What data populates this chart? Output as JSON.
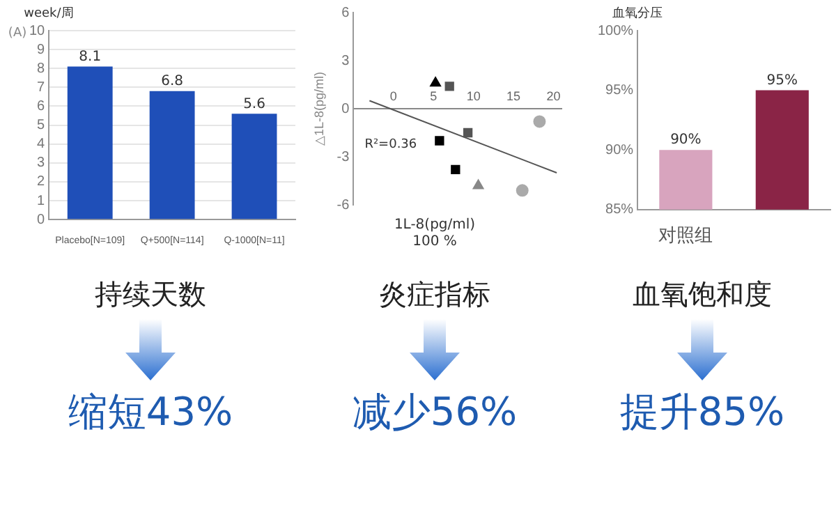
{
  "chart_data": [
    {
      "type": "bar",
      "ylabel": "week/周",
      "categories": [
        "Placebo[N=109]",
        "Q+500[N=114]",
        "Q-1000[N=11]"
      ],
      "values": [
        8.1,
        6.8,
        5.6
      ],
      "color": "#1f4fb8",
      "ylim": [
        0,
        10
      ],
      "yticks": [
        0,
        1,
        2,
        3,
        4,
        5,
        6,
        7,
        8,
        9,
        10
      ],
      "grid": "y",
      "data_labels": true,
      "annotations": [
        "(A)",
        "持续天数",
        "缩短43%"
      ]
    },
    {
      "type": "scatter",
      "xlabel": "1L-8(pg/ml)",
      "ylabel": "△1L-8(pg/ml)",
      "xlim": [
        -5,
        21
      ],
      "xticks": [
        0,
        5,
        10,
        15,
        20
      ],
      "ylim": [
        -6,
        6
      ],
      "yticks": [
        -6,
        -3,
        0,
        3,
        6
      ],
      "grid": false,
      "series": [
        {
          "marker": "triangle",
          "color": "#000000",
          "x": [
            5.25
          ],
          "values": [
            1.6
          ]
        },
        {
          "marker": "square",
          "color": "#555555",
          "x": [
            7.0,
            9.3
          ],
          "values": [
            1.4,
            -1.5
          ]
        },
        {
          "marker": "square",
          "color": "#000000",
          "x": [
            5.75,
            7.75
          ],
          "values": [
            -2.0,
            -3.8
          ]
        },
        {
          "marker": "triangle",
          "color": "#888888",
          "x": [
            10.6
          ],
          "values": [
            -4.8
          ]
        },
        {
          "marker": "circle",
          "color": "#aaaaaa",
          "x": [
            16.1,
            18.25
          ],
          "values": [
            -5.1,
            -0.8
          ]
        },
        {
          "type": "line",
          "color": "#555555",
          "x": [
            -3,
            20.4
          ],
          "values": [
            0.5,
            -4.0
          ]
        }
      ],
      "annotations": [
        "R²=0.36",
        "100 %",
        "炎症指标",
        "减少56%"
      ]
    },
    {
      "type": "bar",
      "ylabel": "血氧分压",
      "categories": [
        "对照组",
        null
      ],
      "values": [
        90,
        95
      ],
      "colors": [
        "#d8a4be",
        "#8a2446"
      ],
      "ylim": [
        85,
        100
      ],
      "yticks": [
        {
          "value": 85,
          "label": "85%"
        },
        {
          "value": 90,
          "label": "90%"
        },
        {
          "value": 95,
          "label": "95%"
        },
        {
          "value": 100,
          "label": "100%"
        }
      ],
      "grid": false,
      "value_labels": [
        "90%",
        "95%"
      ],
      "annotations": [
        "血氧饱和度",
        "提升85%"
      ]
    }
  ]
}
